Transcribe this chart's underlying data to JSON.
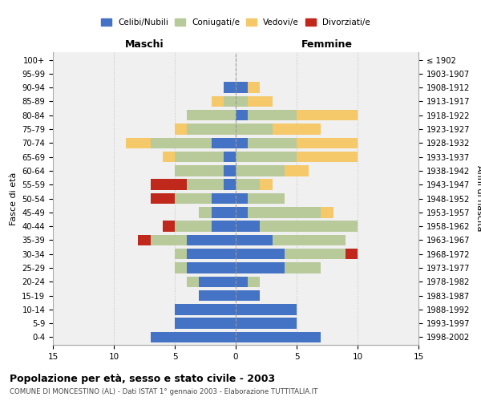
{
  "age_groups": [
    "0-4",
    "5-9",
    "10-14",
    "15-19",
    "20-24",
    "25-29",
    "30-34",
    "35-39",
    "40-44",
    "45-49",
    "50-54",
    "55-59",
    "60-64",
    "65-69",
    "70-74",
    "75-79",
    "80-84",
    "85-89",
    "90-94",
    "95-99",
    "100+"
  ],
  "birth_years": [
    "1998-2002",
    "1993-1997",
    "1988-1992",
    "1983-1987",
    "1978-1982",
    "1973-1977",
    "1968-1972",
    "1963-1967",
    "1958-1962",
    "1953-1957",
    "1948-1952",
    "1943-1947",
    "1938-1942",
    "1933-1937",
    "1928-1932",
    "1923-1927",
    "1918-1922",
    "1913-1917",
    "1908-1912",
    "1903-1907",
    "≤ 1902"
  ],
  "maschi": {
    "celibi": [
      7,
      5,
      5,
      3,
      3,
      4,
      4,
      4,
      2,
      2,
      2,
      1,
      1,
      1,
      2,
      0,
      0,
      0,
      1,
      0,
      0
    ],
    "coniugati": [
      0,
      0,
      0,
      0,
      1,
      1,
      1,
      3,
      3,
      1,
      3,
      3,
      4,
      4,
      5,
      4,
      4,
      1,
      0,
      0,
      0
    ],
    "vedovi": [
      0,
      0,
      0,
      0,
      0,
      0,
      0,
      0,
      0,
      0,
      0,
      0,
      0,
      1,
      2,
      1,
      0,
      1,
      0,
      0,
      0
    ],
    "divorziati": [
      0,
      0,
      0,
      0,
      0,
      0,
      0,
      1,
      1,
      0,
      2,
      3,
      0,
      0,
      0,
      0,
      0,
      0,
      0,
      0,
      0
    ]
  },
  "femmine": {
    "nubili": [
      7,
      5,
      5,
      2,
      1,
      4,
      4,
      3,
      2,
      1,
      1,
      0,
      0,
      0,
      1,
      0,
      1,
      0,
      1,
      0,
      0
    ],
    "coniugate": [
      0,
      0,
      0,
      0,
      1,
      3,
      5,
      6,
      8,
      6,
      3,
      2,
      4,
      5,
      4,
      3,
      4,
      1,
      0,
      0,
      0
    ],
    "vedove": [
      0,
      0,
      0,
      0,
      0,
      0,
      0,
      0,
      0,
      1,
      0,
      1,
      2,
      5,
      5,
      4,
      5,
      2,
      1,
      0,
      0
    ],
    "divorziate": [
      0,
      0,
      0,
      0,
      0,
      0,
      1,
      0,
      0,
      0,
      0,
      0,
      0,
      0,
      0,
      0,
      0,
      0,
      0,
      0,
      0
    ]
  },
  "colors": {
    "celibi_nubili": "#4472c4",
    "coniugati": "#b8c99a",
    "vedovi": "#f5c96a",
    "divorziati": "#c0281c"
  },
  "xlim": 15,
  "title": "Popolazione per età, sesso e stato civile - 2003",
  "subtitle": "COMUNE DI MONCESTINO (AL) - Dati ISTAT 1° gennaio 2003 - Elaborazione TUTTITALIA.IT",
  "ylabel_left": "Fasce di età",
  "ylabel_right": "Anni di nascita",
  "xlabel_left": "Maschi",
  "xlabel_right": "Femmine",
  "legend_labels": [
    "Celibi/Nubili",
    "Coniugati/e",
    "Vedovi/e",
    "Divorziati/e"
  ],
  "background_color": "#f0f0f0"
}
